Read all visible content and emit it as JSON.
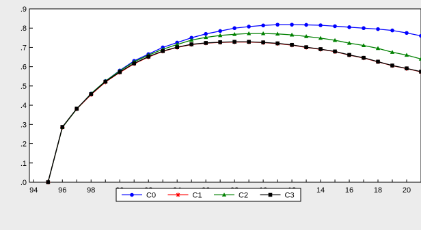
{
  "chart_data": {
    "type": "line",
    "title": "",
    "xlabel": "",
    "ylabel": "",
    "x": [
      1995,
      1996,
      1997,
      1998,
      1999,
      2000,
      2001,
      2002,
      2003,
      2004,
      2005,
      2006,
      2007,
      2008,
      2009,
      2010,
      2011,
      2012,
      2013,
      2014,
      2015,
      2016,
      2017,
      2018,
      2019,
      2020,
      2021
    ],
    "xlim": [
      1993.7,
      2021
    ],
    "ylim": [
      0,
      0.9
    ],
    "x_ticks": [
      1994,
      1996,
      1998,
      2000,
      2002,
      2004,
      2006,
      2008,
      2010,
      2012,
      2014,
      2016,
      2018,
      2020
    ],
    "x_tick_labels": [
      "94",
      "96",
      "98",
      "00",
      "02",
      "04",
      "06",
      "08",
      "10",
      "12",
      "14",
      "16",
      "18",
      "20"
    ],
    "y_ticks": [
      0,
      0.1,
      0.2,
      0.3,
      0.4,
      0.5,
      0.6,
      0.7,
      0.8,
      0.9
    ],
    "y_tick_labels": [
      ".0",
      ".1",
      ".2",
      ".3",
      ".4",
      ".5",
      ".6",
      ".7",
      ".8",
      ".9"
    ],
    "grid": false,
    "legend_position": "bottom-center",
    "series": [
      {
        "name": "C0",
        "color": "#0000ff",
        "marker": "circle",
        "values": [
          0.0,
          0.285,
          0.38,
          0.46,
          0.525,
          0.58,
          0.63,
          0.665,
          0.7,
          0.725,
          0.75,
          0.77,
          0.785,
          0.8,
          0.808,
          0.814,
          0.818,
          0.818,
          0.817,
          0.815,
          0.81,
          0.805,
          0.8,
          0.795,
          0.788,
          0.775,
          0.76
        ]
      },
      {
        "name": "C1",
        "color": "#ff0000",
        "marker": "star",
        "values": [
          0.0,
          0.285,
          0.38,
          0.455,
          0.52,
          0.57,
          0.615,
          0.65,
          0.68,
          0.7,
          0.715,
          0.722,
          0.726,
          0.728,
          0.728,
          0.725,
          0.72,
          0.712,
          0.7,
          0.69,
          0.678,
          0.66,
          0.645,
          0.625,
          0.605,
          0.59,
          0.573
        ]
      },
      {
        "name": "C2",
        "color": "#008000",
        "marker": "triangle",
        "values": [
          0.0,
          0.285,
          0.38,
          0.46,
          0.525,
          0.578,
          0.625,
          0.66,
          0.69,
          0.715,
          0.738,
          0.752,
          0.762,
          0.768,
          0.772,
          0.772,
          0.77,
          0.765,
          0.757,
          0.748,
          0.737,
          0.722,
          0.71,
          0.695,
          0.675,
          0.66,
          0.64
        ]
      },
      {
        "name": "C3",
        "color": "#000000",
        "marker": "square",
        "values": [
          0.0,
          0.287,
          0.382,
          0.457,
          0.522,
          0.572,
          0.617,
          0.652,
          0.681,
          0.701,
          0.716,
          0.723,
          0.727,
          0.729,
          0.729,
          0.726,
          0.721,
          0.713,
          0.701,
          0.691,
          0.679,
          0.661,
          0.646,
          0.626,
          0.606,
          0.591,
          0.574
        ]
      }
    ]
  }
}
